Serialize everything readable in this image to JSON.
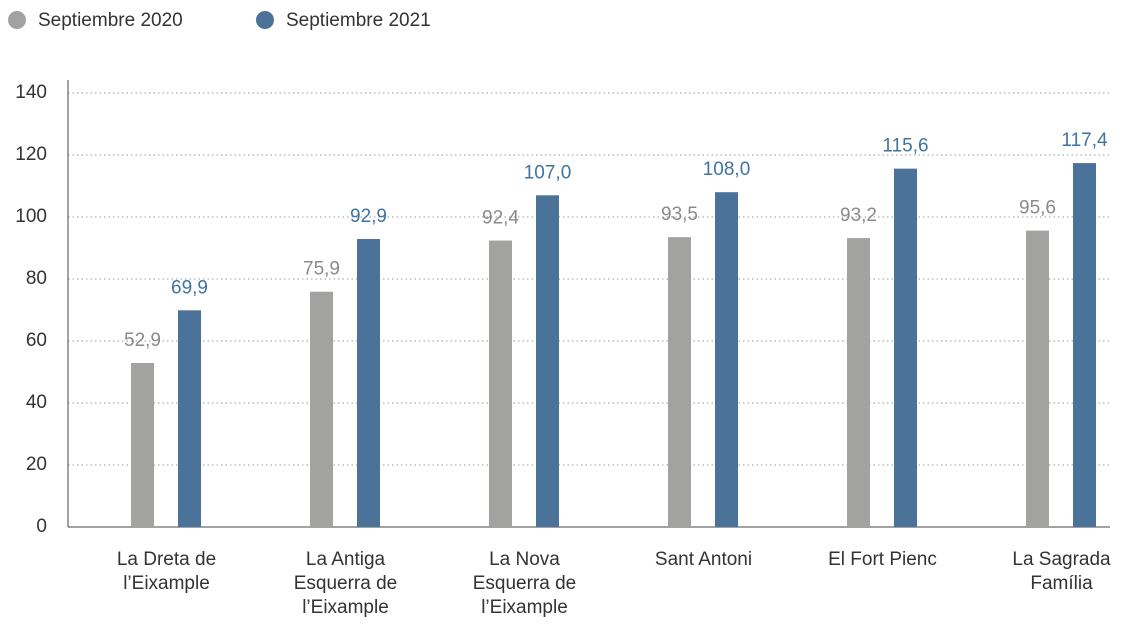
{
  "chart_data": {
    "type": "bar",
    "categories": [
      "La Dreta de l’Eixample",
      "La Antiga Esquerra de l’Eixample",
      "La Nova Esquerra de l’Eixample",
      "Sant Antoni",
      "El Fort Pienc",
      "La Sagrada Família"
    ],
    "series": [
      {
        "name": "Septiembre 2020",
        "color": "#a2a2a0",
        "label_color": "#8a8a8a",
        "values": [
          52.9,
          75.9,
          92.4,
          93.5,
          93.2,
          95.6
        ],
        "value_labels": [
          "52,9",
          "75,9",
          "92,4",
          "93,5",
          "93,2",
          "95,6"
        ]
      },
      {
        "name": "Septiembre 2021",
        "color": "#4b7399",
        "label_color": "#3f74a0",
        "values": [
          69.9,
          92.9,
          107.0,
          108.0,
          115.6,
          117.4
        ],
        "value_labels": [
          "69,9",
          "92,9",
          "107,0",
          "108,0",
          "115,6",
          "117,4"
        ]
      }
    ],
    "ylim": [
      0,
      140
    ],
    "yticks": [
      0,
      20,
      40,
      60,
      80,
      100,
      120,
      140
    ],
    "grid": true,
    "legend": "top-left"
  }
}
